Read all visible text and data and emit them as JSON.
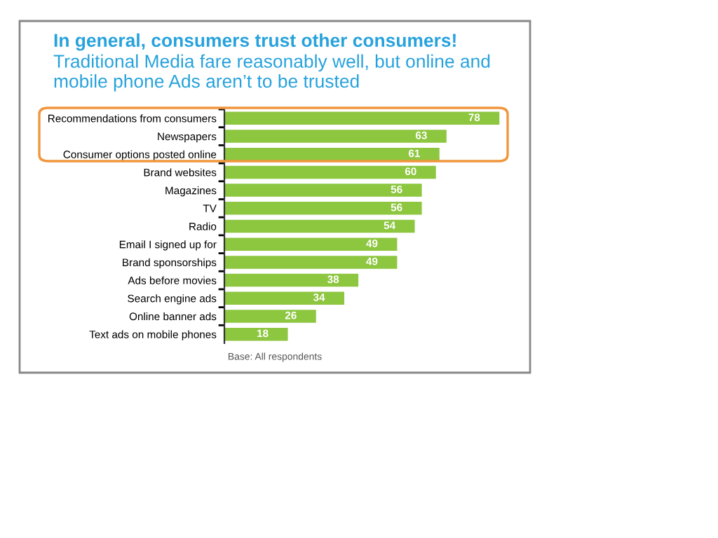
{
  "chart_data": {
    "type": "bar",
    "orientation": "horizontal",
    "title": "In general, consumers trust other consumers!",
    "subtitle": "Traditional Media fare reasonably well, but online and mobile phone Ads aren’t to be trusted",
    "categories": [
      "Recommendations from consumers",
      "Newspapers",
      "Consumer options posted online",
      "Brand websites",
      "Magazines",
      "TV",
      "Radio",
      "Email I signed up for",
      "Brand sponsorships",
      "Ads before movies",
      "Search engine ads",
      "Online banner ads",
      "Text ads on mobile phones"
    ],
    "values": [
      78,
      63,
      61,
      60,
      56,
      56,
      54,
      49,
      49,
      38,
      34,
      26,
      18
    ],
    "color": "#8dc63f",
    "data_labels": true,
    "grid": false,
    "legend": false,
    "annotations": [
      "Base: All respondents"
    ]
  }
}
